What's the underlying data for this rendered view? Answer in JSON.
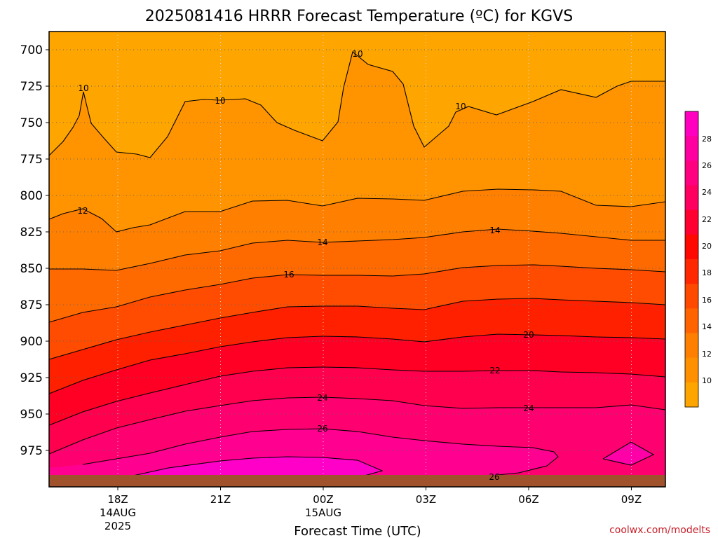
{
  "chart_data": {
    "type": "filled-contour",
    "title": "2025081416 HRRR Forecast Temperature (ºC) for KGVS",
    "xlabel": "Forecast Time (UTC)",
    "ylabel": "",
    "credit": "coolwx.com/modelts",
    "y_axis": {
      "ticks": [
        "700",
        "725",
        "750",
        "775",
        "800",
        "825",
        "850",
        "875",
        "900",
        "925",
        "950",
        "975"
      ]
    },
    "x_axis": {
      "ticks": [
        {
          "label": "18Z",
          "sub1": "14AUG",
          "sub2": "2025"
        },
        {
          "label": "21Z",
          "sub1": "",
          "sub2": ""
        },
        {
          "label": "00Z",
          "sub1": "15AUG",
          "sub2": ""
        },
        {
          "label": "03Z",
          "sub1": "",
          "sub2": ""
        },
        {
          "label": "06Z",
          "sub1": "",
          "sub2": ""
        },
        {
          "label": "09Z",
          "sub1": "",
          "sub2": ""
        }
      ]
    },
    "units": "°C",
    "colorbar": {
      "ticks": [
        "10",
        "12",
        "14",
        "16",
        "18",
        "20",
        "22",
        "24",
        "26",
        "28"
      ],
      "colors": [
        "#ffa500",
        "#ff9000",
        "#ff8000",
        "#ff6400",
        "#ff4800",
        "#ff2800",
        "#ff0800",
        "#ff0030",
        "#ff0060",
        "#ff0080",
        "#ff00a0",
        "#ff00c0"
      ]
    },
    "contours": [
      {
        "level": 10,
        "labels": [
          {
            "text": "10",
            "at": "16Z"
          },
          {
            "text": "10",
            "at": "20Z"
          },
          {
            "text": "10",
            "at": "01Z"
          },
          {
            "text": "10",
            "at": "04Z"
          }
        ]
      },
      {
        "level": 12,
        "labels": [
          {
            "text": "12",
            "at": "17Z"
          }
        ]
      },
      {
        "level": 14,
        "labels": [
          {
            "text": "14",
            "at": "00Z"
          },
          {
            "text": "14",
            "at": "05Z"
          }
        ]
      },
      {
        "level": 16,
        "labels": [
          {
            "text": "16",
            "at": "22Z"
          }
        ]
      },
      {
        "level": 20,
        "labels": [
          {
            "text": "20",
            "at": "06Z"
          }
        ]
      },
      {
        "level": 22,
        "labels": [
          {
            "text": "22",
            "at": "05Z"
          }
        ]
      },
      {
        "level": 24,
        "labels": [
          {
            "text": "24",
            "at": "00Z"
          },
          {
            "text": "24",
            "at": "06Z"
          }
        ]
      },
      {
        "level": 26,
        "labels": [
          {
            "text": "26",
            "at": "00Z"
          },
          {
            "text": "26",
            "at": "05Z"
          }
        ]
      }
    ]
  }
}
